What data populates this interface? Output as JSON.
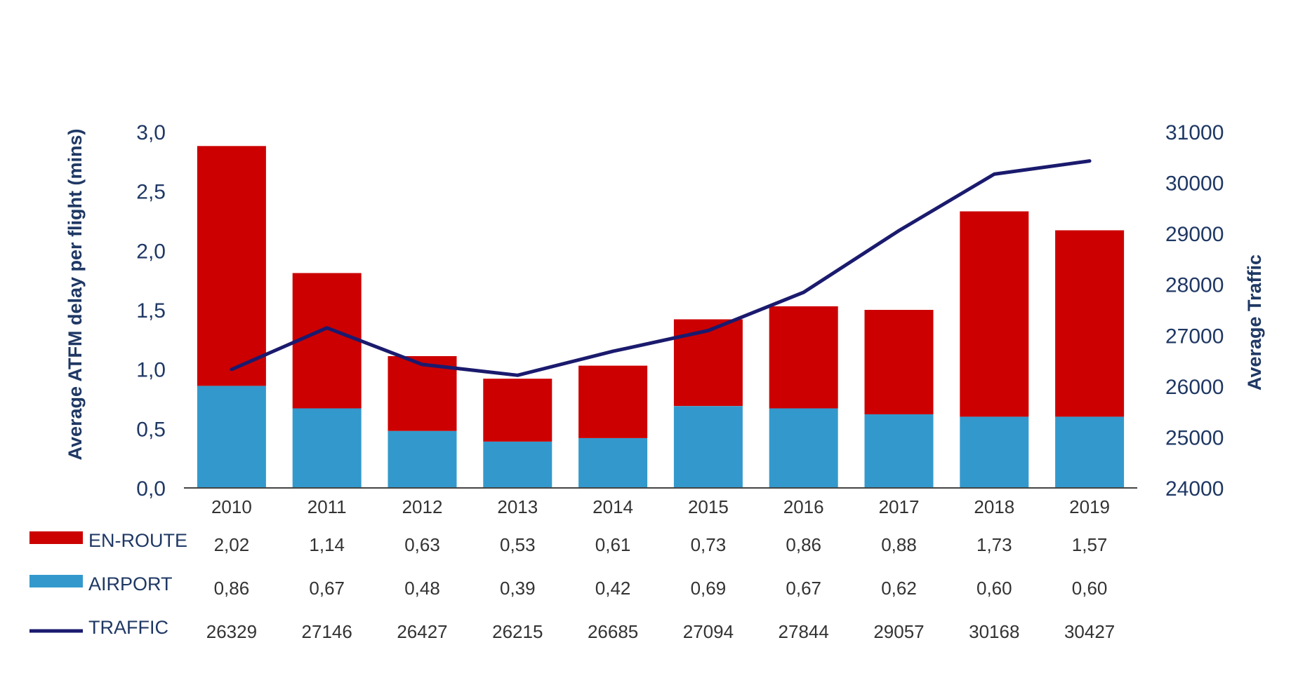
{
  "chart_data": {
    "type": "bar",
    "stacked": true,
    "categories": [
      "2010",
      "2011",
      "2012",
      "2013",
      "2014",
      "2015",
      "2016",
      "2017",
      "2018",
      "2019"
    ],
    "series": [
      {
        "name": "AIRPORT",
        "kind": "bar",
        "color": "#3399cc",
        "values": [
          0.86,
          0.67,
          0.48,
          0.39,
          0.42,
          0.69,
          0.67,
          0.62,
          0.6,
          0.6
        ],
        "labels": [
          "0,86",
          "0,67",
          "0,48",
          "0,39",
          "0,42",
          "0,69",
          "0,67",
          "0,62",
          "0,60",
          "0,60"
        ]
      },
      {
        "name": "EN-ROUTE",
        "kind": "bar",
        "color": "#cc0000",
        "values": [
          2.02,
          1.14,
          0.63,
          0.53,
          0.61,
          0.73,
          0.86,
          0.88,
          1.73,
          1.57
        ],
        "labels": [
          "2,02",
          "1,14",
          "0,63",
          "0,53",
          "0,61",
          "0,73",
          "0,86",
          "0,88",
          "1,73",
          "1,57"
        ]
      },
      {
        "name": "TRAFFIC",
        "kind": "line",
        "axis": "right",
        "color": "#1a1a6e",
        "values": [
          26329,
          27146,
          26427,
          26215,
          26685,
          27094,
          27844,
          29057,
          30168,
          30427
        ],
        "labels": [
          "26329",
          "27146",
          "26427",
          "26215",
          "26685",
          "27094",
          "27844",
          "29057",
          "30168",
          "30427"
        ]
      }
    ],
    "table_order": [
      "EN-ROUTE",
      "AIRPORT",
      "TRAFFIC"
    ],
    "ylabel": "Average ATFM delay per flight (mins)",
    "y2label": "Average Traffic",
    "ylim": [
      0,
      3.0
    ],
    "yticks": [
      "0,0",
      "0,5",
      "1,0",
      "1,5",
      "2,0",
      "2,5",
      "3,0"
    ],
    "y2lim": [
      24000,
      31000
    ],
    "y2ticks": [
      "24000",
      "25000",
      "26000",
      "27000",
      "28000",
      "29000",
      "30000",
      "31000"
    ],
    "grid": false,
    "legend": "data-table-bottom"
  }
}
